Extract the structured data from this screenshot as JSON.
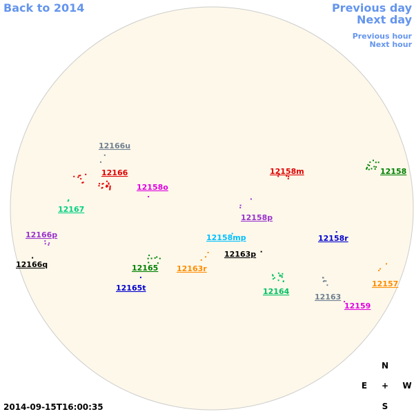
{
  "header": {
    "back": "Back to 2014",
    "previous_day": "Previous day",
    "next_day": "Next day",
    "previous_hour": "Previous hour",
    "next_hour": "Next hour"
  },
  "regions": [
    {
      "label": "12166u",
      "color": "#708090"
    },
    {
      "label": "12166",
      "color": "#e00000"
    },
    {
      "label": "12158o",
      "color": "#e000e0"
    },
    {
      "label": "12167",
      "color": "#00d080"
    },
    {
      "label": "12166p",
      "color": "#9932cc"
    },
    {
      "label": "12166q",
      "color": "#000000"
    },
    {
      "label": "12165",
      "color": "#008000"
    },
    {
      "label": "12165t",
      "color": "#0000cd"
    },
    {
      "label": "12163r",
      "color": "#ff8c00"
    },
    {
      "label": "12158mp",
      "color": "#00bfff"
    },
    {
      "label": "12163p",
      "color": "#000000"
    },
    {
      "label": "12158m",
      "color": "#e00000"
    },
    {
      "label": "12158",
      "color": "#008000"
    },
    {
      "label": "12158p",
      "color": "#9932cc"
    },
    {
      "label": "12158r",
      "color": "#0000cd"
    },
    {
      "label": "12164",
      "color": "#00c060"
    },
    {
      "label": "12163",
      "color": "#708090"
    },
    {
      "label": "12159",
      "color": "#e000e0"
    },
    {
      "label": "12157",
      "color": "#ff8c00"
    }
  ],
  "compass": {
    "north": "N",
    "east": "E",
    "center": "+",
    "west": "W",
    "south": "S"
  },
  "timestamp": "2014-09-15T16:00:35"
}
